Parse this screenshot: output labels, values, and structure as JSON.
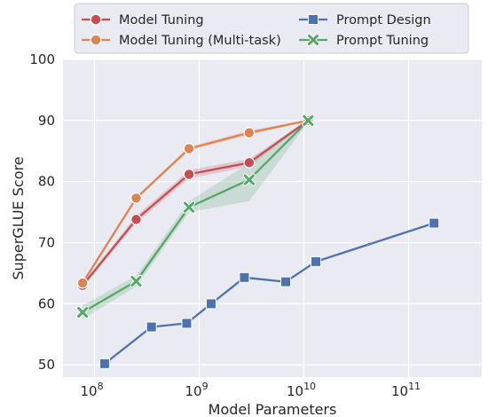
{
  "chart_data": {
    "type": "line",
    "xscale": "log",
    "xlim": [
      50000000,
      500000000000
    ],
    "ylim": [
      48,
      100
    ],
    "xlabel": "Model Parameters",
    "ylabel": "SuperGLUE Score",
    "grid": true,
    "legend_position": "top",
    "x_ticks": [
      {
        "value": 100000000,
        "base": "10",
        "exp": "8"
      },
      {
        "value": 1000000000,
        "base": "10",
        "exp": "9"
      },
      {
        "value": 10000000000,
        "base": "10",
        "exp": "10"
      },
      {
        "value": 100000000000,
        "base": "10",
        "exp": "11"
      }
    ],
    "y_ticks": [
      {
        "value": 50,
        "label": "50"
      },
      {
        "value": 60,
        "label": "60"
      },
      {
        "value": 70,
        "label": "70"
      },
      {
        "value": 80,
        "label": "80"
      },
      {
        "value": 90,
        "label": "90"
      },
      {
        "value": 100,
        "label": "100"
      }
    ],
    "series": [
      {
        "name": "Model Tuning",
        "color": "#c44e52",
        "marker": "circle",
        "x": [
          77000000,
          250000000,
          800000000,
          3000000000,
          11000000000
        ],
        "y": [
          63.0,
          73.8,
          81.2,
          83.1,
          90.0
        ],
        "y_low": [
          62.6,
          73.2,
          80.5,
          82.5,
          89.8
        ],
        "y_high": [
          63.4,
          74.4,
          81.9,
          83.7,
          90.2
        ]
      },
      {
        "name": "Model Tuning (Multi-task)",
        "color": "#dd8452",
        "marker": "circle",
        "x": [
          77000000,
          250000000,
          800000000,
          3000000000,
          11000000000
        ],
        "y": [
          63.4,
          77.3,
          85.4,
          88.0,
          90.0
        ],
        "y_low": [
          63.1,
          77.0,
          85.1,
          87.6,
          89.9
        ],
        "y_high": [
          63.7,
          77.6,
          85.7,
          88.4,
          90.1
        ]
      },
      {
        "name": "Prompt Design",
        "color": "#4c72b0",
        "marker": "square",
        "x": [
          125000000,
          350000000,
          760000000,
          1300000000,
          2700000000,
          6700000000,
          13000000000,
          175000000000
        ],
        "y": [
          50.2,
          56.2,
          56.8,
          60.0,
          64.3,
          63.6,
          66.9,
          73.2
        ]
      },
      {
        "name": "Prompt Tuning",
        "color": "#55a868",
        "marker": "x",
        "x": [
          77000000,
          250000000,
          800000000,
          3000000000,
          11000000000
        ],
        "y": [
          58.6,
          63.7,
          75.8,
          80.3,
          90.0
        ],
        "y_low": [
          57.5,
          62.8,
          75.0,
          76.8,
          89.7
        ],
        "y_high": [
          59.7,
          64.6,
          76.8,
          83.0,
          90.3
        ]
      }
    ],
    "legend": {
      "columns": [
        [
          "Model Tuning",
          "Model Tuning (Multi-task)"
        ],
        [
          "Prompt Design",
          "Prompt Tuning"
        ]
      ]
    }
  }
}
